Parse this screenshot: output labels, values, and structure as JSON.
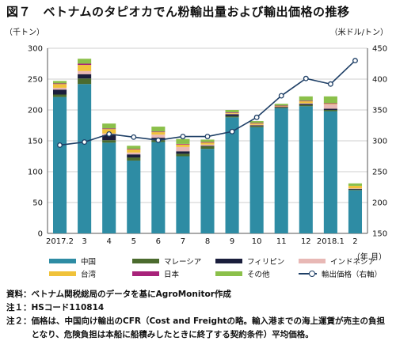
{
  "title": "図７　ベトナムのタピオカでん粉輸出量および輸出価格の推移",
  "left_unit": "（千トン）",
  "right_unit": "（米ドル/トン）",
  "x_unit": "（年.月）",
  "colors": {
    "中国": "#2e8ca4",
    "マレーシア": "#4b6b2e",
    "フィリピン": "#1a1e3c",
    "インドネシア": "#e8b8b5",
    "台湾": "#f0c23a",
    "日本": "#a8227a",
    "その他": "#8bc04a",
    "price": "#1e3f66"
  },
  "chart_data": {
    "type": "bar",
    "stacked": true,
    "categories": [
      "2017.2",
      "3",
      "4",
      "5",
      "6",
      "7",
      "8",
      "9",
      "10",
      "11",
      "12",
      "2018.1",
      "2"
    ],
    "series": [
      {
        "name": "中国",
        "values": [
          221,
          242,
          147,
          118,
          148,
          125,
          137,
          188,
          172,
          203,
          206,
          198,
          70
        ]
      },
      {
        "name": "マレーシア",
        "values": [
          4,
          9,
          4,
          5,
          3,
          4,
          4,
          2,
          2,
          1,
          2,
          2,
          1
        ]
      },
      {
        "name": "フィリピン",
        "values": [
          8,
          7,
          8,
          5,
          4,
          4,
          1,
          3,
          1,
          1,
          2,
          2,
          1
        ]
      },
      {
        "name": "インドネシア",
        "values": [
          3,
          5,
          3,
          3,
          5,
          7,
          2,
          1,
          1,
          0,
          1,
          7,
          1
        ]
      },
      {
        "name": "台湾",
        "values": [
          6,
          10,
          7,
          5,
          4,
          4,
          3,
          1,
          2,
          1,
          3,
          1,
          4
        ]
      },
      {
        "name": "日本",
        "values": [
          1,
          2,
          1,
          1,
          1,
          1,
          1,
          1,
          1,
          1,
          1,
          1,
          0
        ]
      },
      {
        "name": "その他",
        "values": [
          4,
          8,
          8,
          5,
          8,
          8,
          4,
          4,
          3,
          3,
          7,
          11,
          4
        ]
      }
    ],
    "line_series": {
      "name": "輸出価格（右軸）",
      "values": [
        293,
        298,
        311,
        306,
        301,
        307,
        307,
        315,
        338,
        373,
        401,
        392,
        430
      ]
    },
    "y_left": {
      "min": 0,
      "max": 300,
      "ticks": [
        0,
        50,
        100,
        150,
        200,
        250,
        300
      ]
    },
    "y_right": {
      "min": 150,
      "max": 450,
      "ticks": [
        150,
        200,
        250,
        300,
        350,
        400,
        450
      ]
    },
    "grid": true
  },
  "legend": {
    "row1": [
      "中国",
      "マレーシア",
      "フィリピン",
      "インドネシア"
    ],
    "row2": [
      "台湾",
      "日本",
      "その他",
      "輸出価格（右軸）"
    ]
  },
  "notes": [
    {
      "label": "資料：",
      "text": "ベトナム関税総局のデータを基にAgroMonitor作成"
    },
    {
      "label": "注１：",
      "text": "HSコード110814"
    },
    {
      "label": "注２：",
      "text": "価格は、中国向け輸出のCFR（Cost and Freightの略。輸入港までの海上運賃が売主の負担となり、危険負担は本船に船積みしたときに終了する契約条件）平均価格。"
    }
  ]
}
